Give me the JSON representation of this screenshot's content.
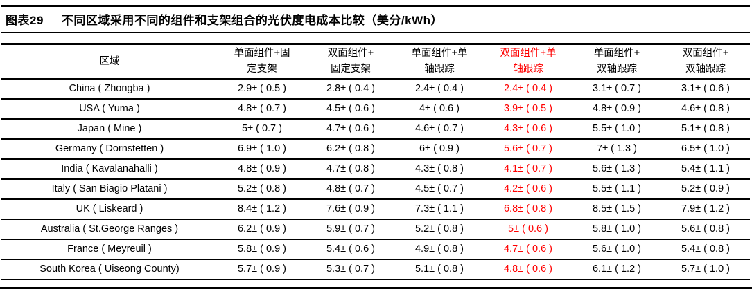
{
  "page": {
    "background": "#ffffff",
    "text_color": "#000000",
    "highlight_color": "#ff0000"
  },
  "title": {
    "tag": "图表29",
    "text": "不同区域采用不同的组件和支架组合的光伏度电成本比较（美分/kWh）"
  },
  "table": {
    "region_header": "区域",
    "columns": [
      {
        "line1": "单面组件+固",
        "line2": "定支架",
        "highlight": false
      },
      {
        "line1": "双面组件+",
        "line2": "固定支架",
        "highlight": false
      },
      {
        "line1": "单面组件+单",
        "line2": "轴跟踪",
        "highlight": false
      },
      {
        "line1": "双面组件+单",
        "line2": "轴跟踪",
        "highlight": true
      },
      {
        "line1": "单面组件+",
        "line2": "双轴跟踪",
        "highlight": false
      },
      {
        "line1": "双面组件+",
        "line2": "双轴跟踪",
        "highlight": false
      }
    ],
    "highlight_column_index": 3,
    "rows": [
      {
        "region": "China ( Zhongba )",
        "values": [
          "2.9± ( 0.5 )",
          "2.8± ( 0.4 )",
          "2.4± ( 0.4 )",
          "2.4± ( 0.4 )",
          "3.1± ( 0.7 )",
          "3.1± ( 0.6 )"
        ]
      },
      {
        "region": "USA ( Yuma )",
        "values": [
          "4.8± ( 0.7 )",
          "4.5± ( 0.6 )",
          "4± ( 0.6 )",
          "3.9± ( 0.5 )",
          "4.8± ( 0.9 )",
          "4.6± ( 0.8 )"
        ]
      },
      {
        "region": "Japan ( Mine )",
        "values": [
          "5± ( 0.7 )",
          "4.7± ( 0.6 )",
          "4.6± ( 0.7 )",
          "4.3± ( 0.6 )",
          "5.5± ( 1.0 )",
          "5.1± ( 0.8 )"
        ]
      },
      {
        "region": "Germany ( Dornstetten )",
        "values": [
          "6.9± ( 1.0 )",
          "6.2± ( 0.8 )",
          "6± ( 0.9 )",
          "5.6± ( 0.7 )",
          "7± ( 1.3 )",
          "6.5± ( 1.0 )"
        ]
      },
      {
        "region": "India ( Kavalanahalli )",
        "values": [
          "4.8± ( 0.9 )",
          "4.7± ( 0.8 )",
          "4.3± ( 0.8 )",
          "4.1± ( 0.7 )",
          "5.6± ( 1.3 )",
          "5.4± ( 1.1 )"
        ]
      },
      {
        "region": "Italy ( San Biagio Platani )",
        "values": [
          "5.2± ( 0.8 )",
          "4.8± ( 0.7 )",
          "4.5± ( 0.7 )",
          "4.2± ( 0.6 )",
          "5.5± ( 1.1 )",
          "5.2± ( 0.9 )"
        ]
      },
      {
        "region": "UK ( Liskeard )",
        "values": [
          "8.4± ( 1.2 )",
          "7.6± ( 0.9 )",
          "7.3± ( 1.1 )",
          "6.8± ( 0.8 )",
          "8.5± ( 1.5 )",
          "7.9± ( 1.2 )"
        ]
      },
      {
        "region": "Australia ( St.George Ranges )",
        "values": [
          "6.2± ( 0.9 )",
          "5.9± ( 0.7 )",
          "5.2± ( 0.8 )",
          "5± ( 0.6 )",
          "5.8± ( 1.0 )",
          "5.6± ( 0.8 )"
        ]
      },
      {
        "region": "France ( Meyreuil )",
        "values": [
          "5.8± ( 0.9 )",
          "5.4± ( 0.6 )",
          "4.9± ( 0.8 )",
          "4.7± ( 0.6 )",
          "5.6± ( 1.0 )",
          "5.4± ( 0.8 )"
        ]
      },
      {
        "region": "South Korea ( Uiseong County)",
        "values": [
          "5.7± ( 0.9 )",
          "5.3± ( 0.7 )",
          "5.1± ( 0.8 )",
          "4.8± ( 0.6 )",
          "6.1± ( 1.2 )",
          "5.7± ( 1.0 )"
        ]
      }
    ]
  }
}
